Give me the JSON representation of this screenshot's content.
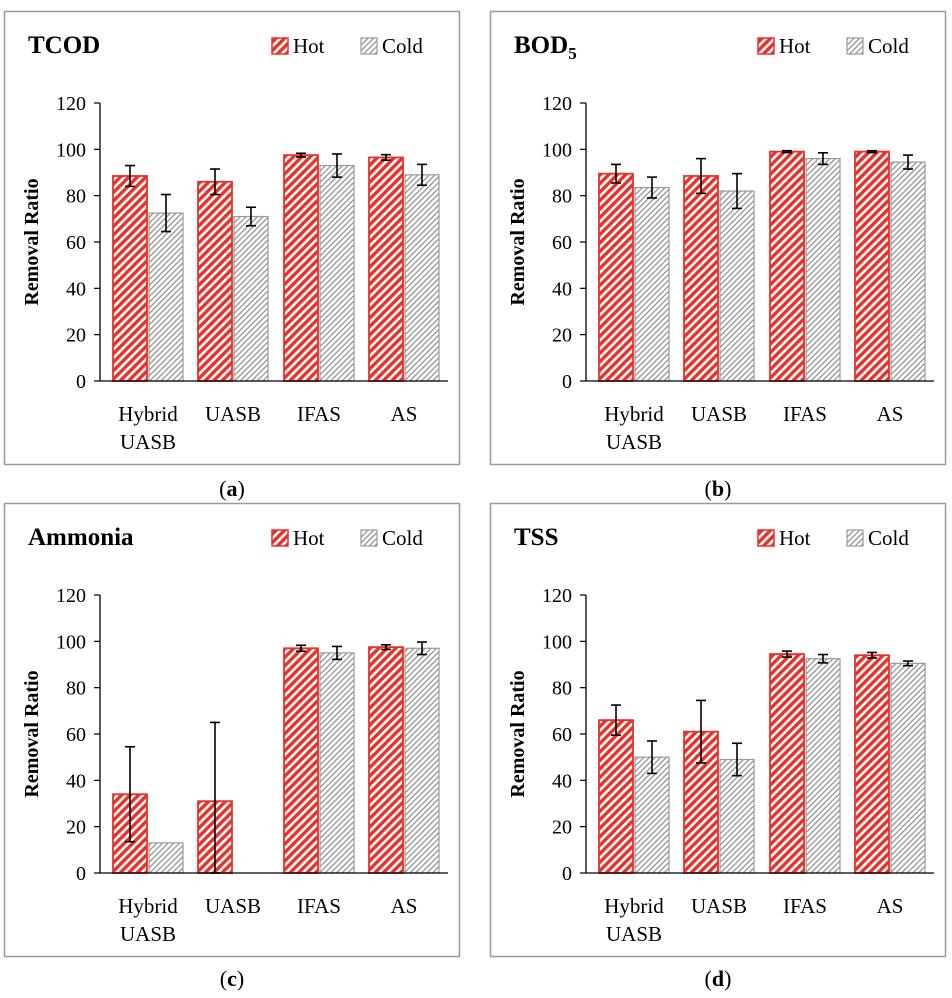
{
  "colors": {
    "hot": "#e8312b",
    "cold": "#9a9a9a",
    "frame": "#9a9a9a",
    "axis": "#000000"
  },
  "legend": {
    "hot": "Hot",
    "cold": "Cold"
  },
  "chart_data": [
    {
      "panel_label": "(a)",
      "type": "bar",
      "title": "TCOD",
      "ylabel": "Removal Ratio",
      "ylim": [
        0,
        120
      ],
      "yticks": [
        0,
        20,
        40,
        60,
        80,
        100,
        120
      ],
      "categories": [
        [
          "Hybrid",
          "UASB"
        ],
        [
          "UASB"
        ],
        [
          "IFAS"
        ],
        [
          "AS"
        ]
      ],
      "series": [
        {
          "name": "Hot",
          "values": [
            88.5,
            86,
            97.5,
            96.5
          ],
          "errors": [
            4.5,
            5.5,
            0.8,
            1.2
          ]
        },
        {
          "name": "Cold",
          "values": [
            72.5,
            71,
            93,
            89
          ],
          "errors": [
            8,
            4,
            5,
            4.5
          ]
        }
      ]
    },
    {
      "panel_label": "(b)",
      "type": "bar",
      "title": "BOD",
      "title_sub": "5",
      "ylabel": "Removal Ratio",
      "ylim": [
        0,
        120
      ],
      "yticks": [
        0,
        20,
        40,
        60,
        80,
        100,
        120
      ],
      "categories": [
        [
          "Hybrid",
          "UASB"
        ],
        [
          "UASB"
        ],
        [
          "IFAS"
        ],
        [
          "AS"
        ]
      ],
      "series": [
        {
          "name": "Hot",
          "values": [
            89.5,
            88.5,
            99,
            99
          ],
          "errors": [
            4,
            7.5,
            0.4,
            0.4
          ]
        },
        {
          "name": "Cold",
          "values": [
            83.5,
            82,
            96,
            94.5
          ],
          "errors": [
            4.5,
            7.5,
            2.5,
            3
          ]
        }
      ]
    },
    {
      "panel_label": "(c)",
      "type": "bar",
      "title": "Ammonia",
      "ylabel": "Removal Ratio",
      "ylim": [
        0,
        120
      ],
      "yticks": [
        0,
        20,
        40,
        60,
        80,
        100,
        120
      ],
      "categories": [
        [
          "Hybrid",
          "UASB"
        ],
        [
          "UASB"
        ],
        [
          "IFAS"
        ],
        [
          "AS"
        ]
      ],
      "series": [
        {
          "name": "Hot",
          "values": [
            34,
            31,
            97,
            97.5
          ],
          "errors": [
            20.5,
            34,
            1.3,
            1
          ]
        },
        {
          "name": "Cold",
          "values": [
            13,
            0,
            95,
            97
          ],
          "errors": [
            0,
            0,
            2.8,
            2.7
          ]
        }
      ]
    },
    {
      "panel_label": "(d)",
      "type": "bar",
      "title": "TSS",
      "ylabel": "Removal Ratio",
      "ylim": [
        0,
        120
      ],
      "yticks": [
        0,
        20,
        40,
        60,
        80,
        100,
        120
      ],
      "categories": [
        [
          "Hybrid",
          "UASB"
        ],
        [
          "UASB"
        ],
        [
          "IFAS"
        ],
        [
          "AS"
        ]
      ],
      "series": [
        {
          "name": "Hot",
          "values": [
            66,
            61,
            94.5,
            94
          ],
          "errors": [
            6.5,
            13.5,
            1.3,
            1.2
          ]
        },
        {
          "name": "Cold",
          "values": [
            50,
            49,
            92.5,
            90.5
          ],
          "errors": [
            7,
            7,
            1.8,
            1
          ]
        }
      ]
    }
  ]
}
